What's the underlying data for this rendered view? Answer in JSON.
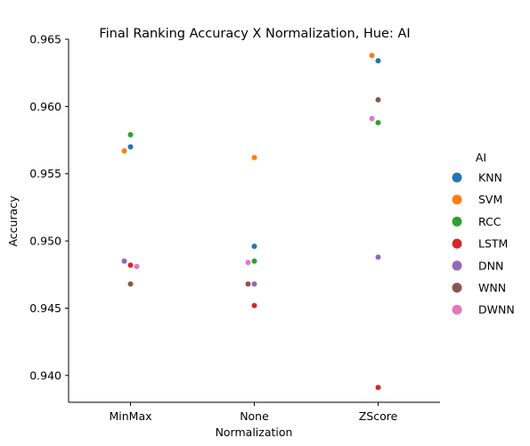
{
  "chart_data": {
    "type": "scatter",
    "title": "Final Ranking Accuracy X Normalization, Hue: AI",
    "xlabel": "Normalization",
    "ylabel": "Accuracy",
    "categories": [
      "MinMax",
      "None",
      "ZScore"
    ],
    "ylim": [
      0.938,
      0.965
    ],
    "yticks": [
      "0.940",
      "0.945",
      "0.950",
      "0.955",
      "0.960",
      "0.965"
    ],
    "grid": false,
    "legend": {
      "title": "AI",
      "placement": "right"
    },
    "series": [
      {
        "name": "KNN",
        "color": "#1f77b4",
        "values": [
          0.957,
          0.9496,
          0.9634
        ]
      },
      {
        "name": "SVM",
        "color": "#ff7f0e",
        "values": [
          0.9567,
          0.9562,
          0.9638
        ]
      },
      {
        "name": "RCC",
        "color": "#2ca02c",
        "values": [
          0.9579,
          0.9485,
          0.9588
        ]
      },
      {
        "name": "LSTM",
        "color": "#d62728",
        "values": [
          0.9482,
          0.9452,
          0.9391
        ]
      },
      {
        "name": "DNN",
        "color": "#9467bd",
        "values": [
          0.9485,
          0.9468,
          0.9488
        ]
      },
      {
        "name": "WNN",
        "color": "#8c564b",
        "values": [
          0.9468,
          0.9468,
          0.9605
        ]
      },
      {
        "name": "DWNN",
        "color": "#e377c2",
        "values": [
          0.9481,
          0.9484,
          0.9591
        ]
      }
    ]
  }
}
